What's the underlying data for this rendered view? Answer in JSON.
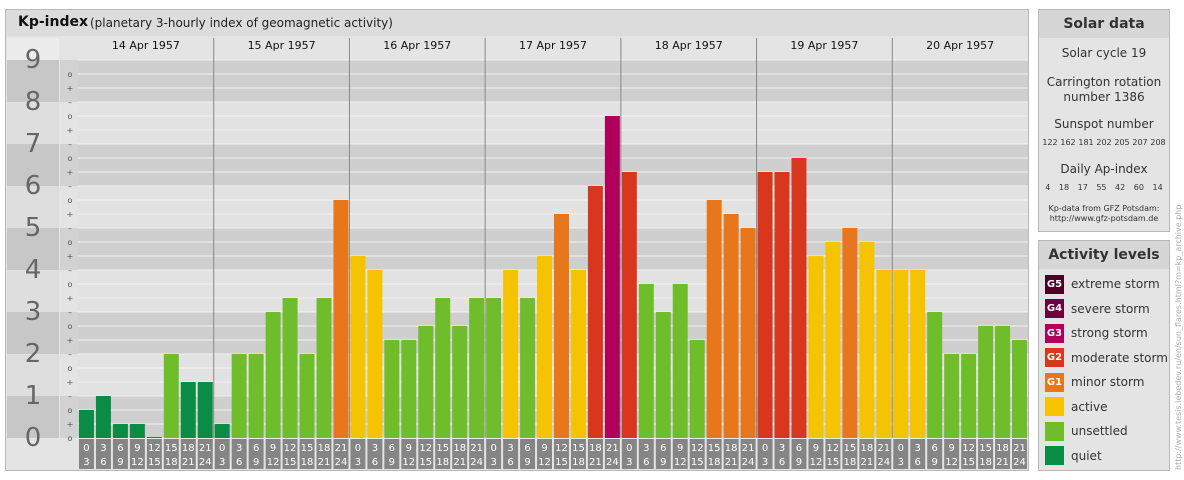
{
  "header": {
    "title": "Kp-index",
    "subtitle": "(planetary 3-hourly index of geomagnetic activity)"
  },
  "solar": {
    "title": "Solar data",
    "cycle": "Solar cycle 19",
    "carrington_line1": "Carrington rotation",
    "carrington_line2": "number 1386",
    "sunspot_label": "Sunspot number",
    "sunspot_values": [
      "122",
      "162",
      "181",
      "202",
      "205",
      "207",
      "208"
    ],
    "ap_label": "Daily Ap-index",
    "ap_values": [
      "4",
      "18",
      "17",
      "55",
      "42",
      "60",
      "14"
    ],
    "source_line1": "Kp-data from GFZ Potsdam:",
    "source_line2": "http://www.gfz-potsdam.de"
  },
  "activity": {
    "title": "Activity levels",
    "items": [
      {
        "badge": "G5",
        "label": "extreme storm",
        "color": "#4d0026"
      },
      {
        "badge": "G4",
        "label": "severe storm",
        "color": "#6e0040"
      },
      {
        "badge": "G3",
        "label": "strong storm",
        "color": "#b0005c"
      },
      {
        "badge": "G2",
        "label": "moderate storm",
        "color": "#d9361e"
      },
      {
        "badge": "G1",
        "label": "minor storm",
        "color": "#e8761a"
      },
      {
        "badge": "",
        "label": "active",
        "color": "#f6c300"
      },
      {
        "badge": "",
        "label": "unsettled",
        "color": "#6fbd2a"
      },
      {
        "badge": "",
        "label": "quiet",
        "color": "#0a8c45"
      }
    ]
  },
  "credit": "http://www.tesis.lebedev.ru/en/sun_flares.html?m=kp_archive.php",
  "chart_data": {
    "type": "bar",
    "title": "Kp-index",
    "ylabel": "",
    "ylim": [
      0,
      9
    ],
    "y_ticks": [
      "0",
      "1",
      "2",
      "3",
      "4",
      "5",
      "6",
      "7",
      "8",
      "9"
    ],
    "sub_ticks": [
      "+",
      "o",
      "–"
    ],
    "days": [
      "14 Apr 1957",
      "15 Apr 1957",
      "16 Apr 1957",
      "17 Apr 1957",
      "18 Apr 1957",
      "19 Apr 1957",
      "20 Apr 1957"
    ],
    "hour_labels": [
      [
        "0",
        "3"
      ],
      [
        "3",
        "6"
      ],
      [
        "6",
        "9"
      ],
      [
        "9",
        "12"
      ],
      [
        "12",
        "15"
      ],
      [
        "15",
        "18"
      ],
      [
        "18",
        "21"
      ],
      [
        "21",
        "24"
      ]
    ],
    "values": [
      0.667,
      1.0,
      0.333,
      0.333,
      0.0,
      2.0,
      1.333,
      1.333,
      0.333,
      2.0,
      2.0,
      3.0,
      3.333,
      2.0,
      3.333,
      5.667,
      4.333,
      4.0,
      2.333,
      2.333,
      2.667,
      3.333,
      2.667,
      3.333,
      3.333,
      4.0,
      3.333,
      4.333,
      5.333,
      4.0,
      6.0,
      7.667,
      6.333,
      3.667,
      3.0,
      3.667,
      2.333,
      5.667,
      5.333,
      5.0,
      6.333,
      6.333,
      6.667,
      4.333,
      4.667,
      5.0,
      4.667,
      4.0,
      4.0,
      4.0,
      3.0,
      2.0,
      2.0,
      2.667,
      2.667,
      2.333
    ],
    "grid": true
  }
}
